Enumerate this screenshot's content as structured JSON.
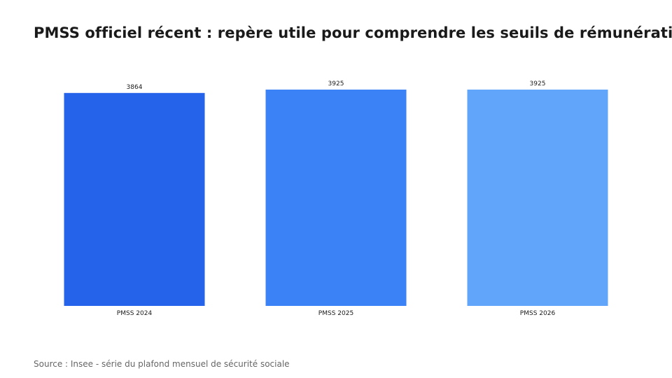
{
  "title": "PMSS officiel récent : repère utile pour comprendre les seuils de rémunération",
  "source": "Source : Insee - série du plafond mensuel de sécurité sociale",
  "chart_data": {
    "type": "bar",
    "title": "PMSS officiel récent : repère utile pour comprendre les seuils de rémunération",
    "categories": [
      "PMSS 2024",
      "PMSS 2025",
      "PMSS 2026"
    ],
    "values": [
      3864,
      3925,
      3925
    ],
    "colors": [
      "#2563eb",
      "#3b82f6",
      "#60a5fa"
    ],
    "xlabel": "",
    "ylabel": "",
    "ylim": [
      0,
      3925
    ],
    "grid": false,
    "legend": "none"
  }
}
